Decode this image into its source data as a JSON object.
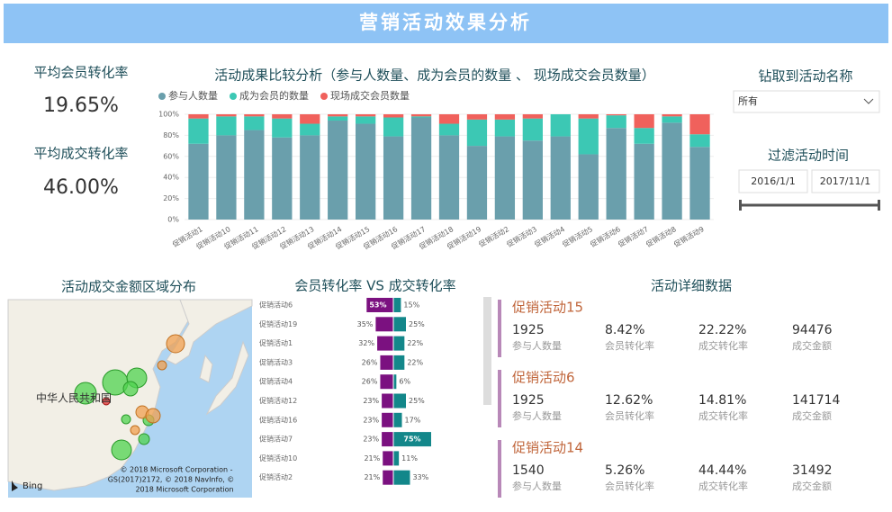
{
  "header": {
    "title": "营销活动效果分析"
  },
  "kpis": [
    {
      "label": "平均会员转化率",
      "value": "19.65%"
    },
    {
      "label": "平均成交转化率",
      "value": "46.00%"
    }
  ],
  "chart_data": [
    {
      "type": "stacked_bar",
      "title": "活动成果比较分析（参与人数量、成为会员的数量 、 现场成交会员数量）",
      "categories": [
        "促销活动1",
        "促销活动10",
        "促销活动11",
        "促销活动12",
        "促销活动13",
        "促销活动14",
        "促销活动15",
        "促销活动16",
        "促销活动17",
        "促销活动18",
        "促销活动19",
        "促销活动2",
        "促销活动3",
        "促销活动4",
        "促销活动5",
        "促销活动6",
        "促销活动7",
        "促销活动8",
        "促销活动9"
      ],
      "series": [
        {
          "name": "参与人数量",
          "color": "#6a9fac",
          "values": [
            72,
            80,
            85,
            78,
            80,
            94,
            91,
            79,
            97,
            80,
            70,
            79,
            75,
            79,
            62,
            87,
            72,
            92,
            69
          ]
        },
        {
          "name": "成为会员的数量",
          "color": "#3cc8b4",
          "values": [
            24,
            18,
            13,
            18,
            11,
            4,
            7,
            18,
            1,
            11,
            25,
            16,
            21,
            21,
            34,
            12,
            15,
            6,
            12
          ]
        },
        {
          "name": "现场成交会员数量",
          "color": "#f0615c",
          "values": [
            4,
            2,
            2,
            4,
            9,
            2,
            2,
            3,
            2,
            9,
            5,
            5,
            4,
            0,
            4,
            1,
            13,
            2,
            19
          ]
        }
      ],
      "ylim": [
        0,
        100
      ],
      "yticks": [
        {
          "value": 0,
          "label": "0%"
        },
        {
          "value": 20,
          "label": "20%"
        },
        {
          "value": 40,
          "label": "40%"
        },
        {
          "value": 60,
          "label": "60%"
        },
        {
          "value": 80,
          "label": "80%"
        },
        {
          "value": 100,
          "label": "100%"
        }
      ],
      "grid": true,
      "legend": "top-left"
    },
    {
      "type": "butterfly_bar",
      "title": "会员转化率 VS 成交转化率",
      "categories": [
        "促销活动6",
        "促销活动19",
        "促销活动1",
        "促销活动3",
        "促销活动4",
        "促销活动12",
        "促销活动16",
        "促销活动7",
        "促销活动10",
        "促销活动2"
      ],
      "series": [
        {
          "color": "#7b1180",
          "values": [
            53,
            35,
            32,
            26,
            26,
            23,
            23,
            23,
            21,
            21
          ],
          "value_labels": [
            "53%",
            "35%",
            "32%",
            "26%",
            "26%",
            "23%",
            "23%",
            "23%",
            "21%",
            "21%"
          ]
        },
        {
          "color": "#13878a",
          "values": [
            15,
            25,
            22,
            22,
            6,
            25,
            17,
            75,
            11,
            33
          ],
          "value_labels": [
            "15%",
            "25%",
            "22%",
            "22%",
            "6%",
            "25%",
            "17%",
            "75%",
            "11%",
            "33%"
          ]
        }
      ]
    }
  ],
  "filters": {
    "activity": {
      "label": "钻取到活动名称",
      "selected": "所有"
    },
    "date": {
      "label": "过滤活动时间",
      "start": "2016/1/1",
      "end": "2017/11/1"
    }
  },
  "map": {
    "title": "活动成交金额区域分布",
    "country_label": "中华人民共和国",
    "attribution": [
      "© 2018 Microsoft Corporation -",
      "GS(2017)2172, © 2018 NavInfo, ©",
      "2018 Microsoft Corporation"
    ],
    "provider": "Bing"
  },
  "details": {
    "title": "活动详细数据",
    "cards": [
      {
        "name": "促销活动15",
        "fields": [
          {
            "value": "1925",
            "label": "参与人数量"
          },
          {
            "value": "8.42%",
            "label": "会员转化率"
          },
          {
            "value": "22.22%",
            "label": "成交转化率"
          },
          {
            "value": "94476",
            "label": "成交金额"
          }
        ]
      },
      {
        "name": "促销活动6",
        "fields": [
          {
            "value": "1925",
            "label": "参与人数量"
          },
          {
            "value": "12.62%",
            "label": "会员转化率"
          },
          {
            "value": "14.81%",
            "label": "成交转化率"
          },
          {
            "value": "141714",
            "label": "成交金额"
          }
        ]
      },
      {
        "name": "促销活动14",
        "fields": [
          {
            "value": "1540",
            "label": "参与人数量"
          },
          {
            "value": "5.26%",
            "label": "会员转化率"
          },
          {
            "value": "44.44%",
            "label": "成交转化率"
          },
          {
            "value": "31492",
            "label": "成交金额"
          }
        ]
      }
    ]
  }
}
